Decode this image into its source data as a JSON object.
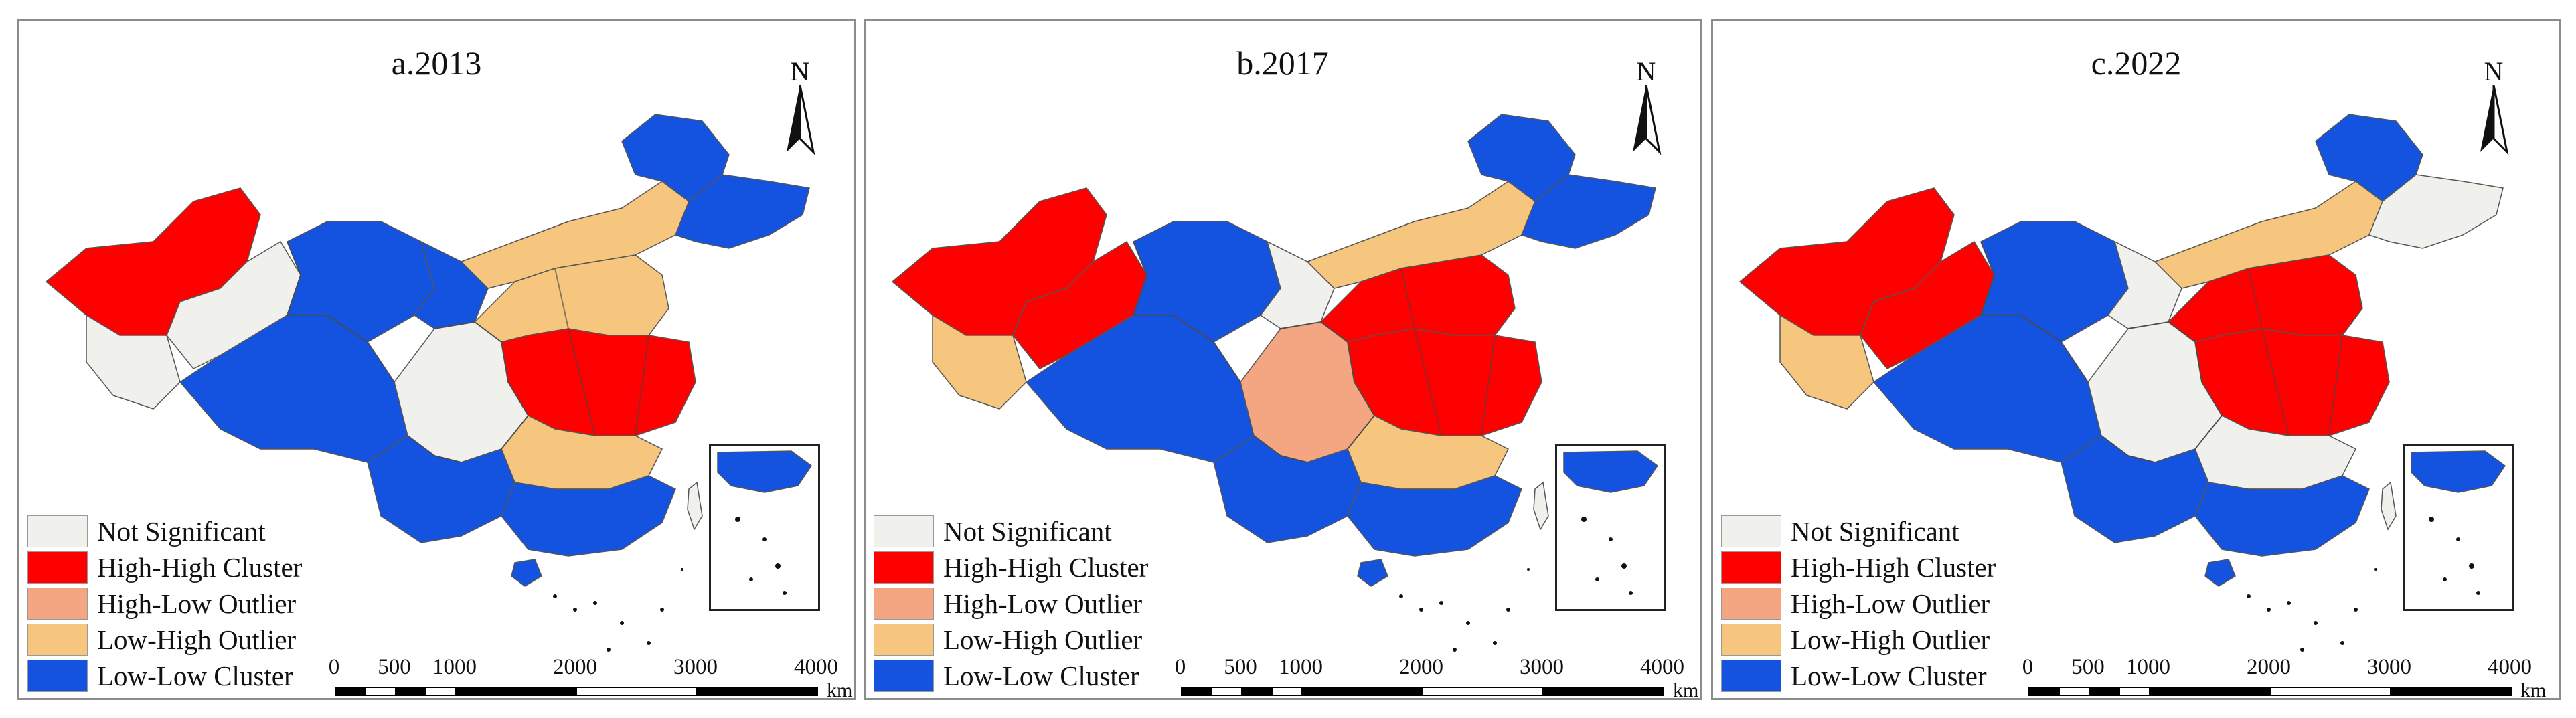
{
  "colors": {
    "not_significant": "#f0f1ec",
    "high_high": "#ff0000",
    "high_low": "#f4a582",
    "low_high": "#f6c67f",
    "low_low": "#1452e0"
  },
  "icons": [
    "north-arrow-icon"
  ],
  "panels": [
    {
      "title": "a.2013",
      "north": "N"
    },
    {
      "title": "b.2017",
      "north": "N"
    },
    {
      "title": "c.2022",
      "north": "N"
    }
  ],
  "legend": [
    {
      "label": "Not Significant",
      "color": "#f0f1ec"
    },
    {
      "label": "High-High Cluster",
      "color": "#ff0000"
    },
    {
      "label": "High-Low Outlier",
      "color": "#f4a582"
    },
    {
      "label": "Low-High Outlier",
      "color": "#f6c67f"
    },
    {
      "label": "Low-Low Cluster",
      "color": "#1452e0"
    }
  ],
  "scale": {
    "ticks": [
      "0",
      "500",
      "1000",
      "2000",
      "3000",
      "4000"
    ],
    "unit": "km"
  }
}
